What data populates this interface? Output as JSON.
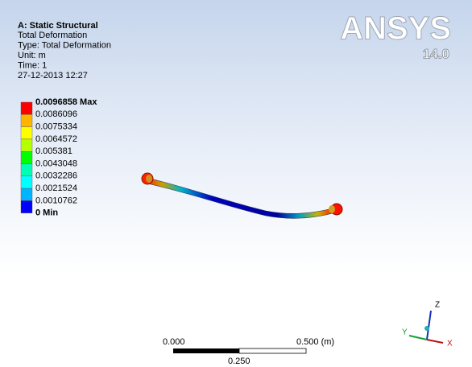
{
  "header": {
    "title": "A: Static Structural",
    "lines": [
      "Total Deformation",
      "Type: Total Deformation",
      "Unit: m",
      "Time: 1",
      "27-12-2013 12:27"
    ]
  },
  "logo": {
    "brand": "ANSYS",
    "version": "14.0"
  },
  "legend": {
    "labels": [
      "0.0096858 Max",
      "0.0086096",
      "0.0075334",
      "0.0064572",
      "0.005381",
      "0.0043048",
      "0.0032286",
      "0.0021524",
      "0.0010762",
      "0 Min"
    ],
    "colors": [
      "#ff0000",
      "#ffb400",
      "#ffff00",
      "#b4ff00",
      "#00ff00",
      "#00ffb4",
      "#00ffff",
      "#00b4ff",
      "#0000ff"
    ]
  },
  "scale_bar": {
    "left": "0.000",
    "right": "0.500 (m)",
    "middle": "0.250"
  },
  "triad": {
    "z": "Z",
    "y": "Y",
    "x": "X"
  }
}
